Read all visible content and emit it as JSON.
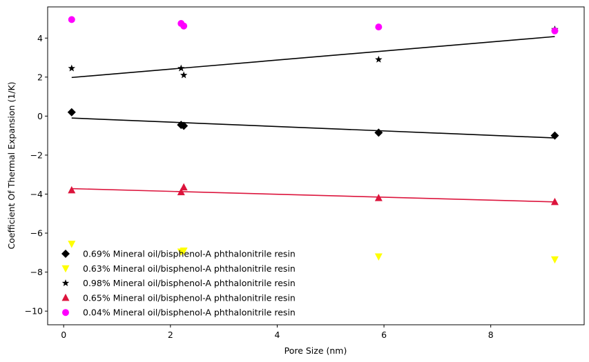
{
  "chart_data": {
    "type": "scatter",
    "xlabel": "Pore Size (nm)",
    "ylabel": "Coefficient Of Thermal Expansion (1/K)",
    "xlim": [
      -0.3,
      9.75
    ],
    "ylim": [
      -10.7,
      5.6
    ],
    "xticks": [
      0,
      2,
      4,
      6,
      8
    ],
    "yticks": [
      -10,
      -8,
      -6,
      -4,
      -2,
      0,
      2,
      4
    ],
    "grid": false,
    "legend_position": "lower-left",
    "series": [
      {
        "name": "0.69% Mineral oil/bisphenol-A phthalonitrile resin",
        "marker": "diamond",
        "color": "#000000",
        "x": [
          0.15,
          2.2,
          2.25,
          5.9,
          9.2
        ],
        "y": [
          0.2,
          -0.45,
          -0.5,
          -0.85,
          -1.0
        ],
        "fit": {
          "x": [
            0.15,
            9.2
          ],
          "y": [
            -0.1,
            -1.12
          ],
          "color": "#000000"
        }
      },
      {
        "name": "0.63% Mineral oil/bisphenol-A phthalonitrile resin",
        "marker": "triangle-down",
        "color": "#ffff00",
        "x": [
          0.15,
          2.2,
          2.25,
          5.9,
          9.2
        ],
        "y": [
          -6.55,
          -6.95,
          -6.9,
          -7.2,
          -7.35
        ]
      },
      {
        "name": "0.98% Mineral oil/bisphenol-A phthalonitrile resin",
        "marker": "star",
        "color": "#000000",
        "x": [
          0.15,
          2.2,
          2.25,
          5.9,
          9.2
        ],
        "y": [
          2.45,
          2.45,
          2.1,
          2.9,
          4.45
        ],
        "fit": {
          "x": [
            0.15,
            9.2
          ],
          "y": [
            1.98,
            4.08
          ],
          "color": "#000000"
        }
      },
      {
        "name": "0.65% Mineral oil/bisphenol-A phthalonitrile resin",
        "marker": "triangle-up",
        "color": "#dc143c",
        "x": [
          0.15,
          2.2,
          2.25,
          5.9,
          9.2
        ],
        "y": [
          -3.8,
          -3.9,
          -3.65,
          -4.2,
          -4.4
        ],
        "fit": {
          "x": [
            0.15,
            9.2
          ],
          "y": [
            -3.72,
            -4.4
          ],
          "color": "#dc143c"
        }
      },
      {
        "name": "0.04% Mineral oil/bisphenol-A phthalonitrile resin",
        "marker": "circle",
        "color": "#ff00ff",
        "x": [
          0.15,
          2.2,
          2.25,
          5.9,
          9.2
        ],
        "y": [
          4.95,
          4.75,
          4.62,
          4.57,
          4.37
        ]
      }
    ]
  }
}
